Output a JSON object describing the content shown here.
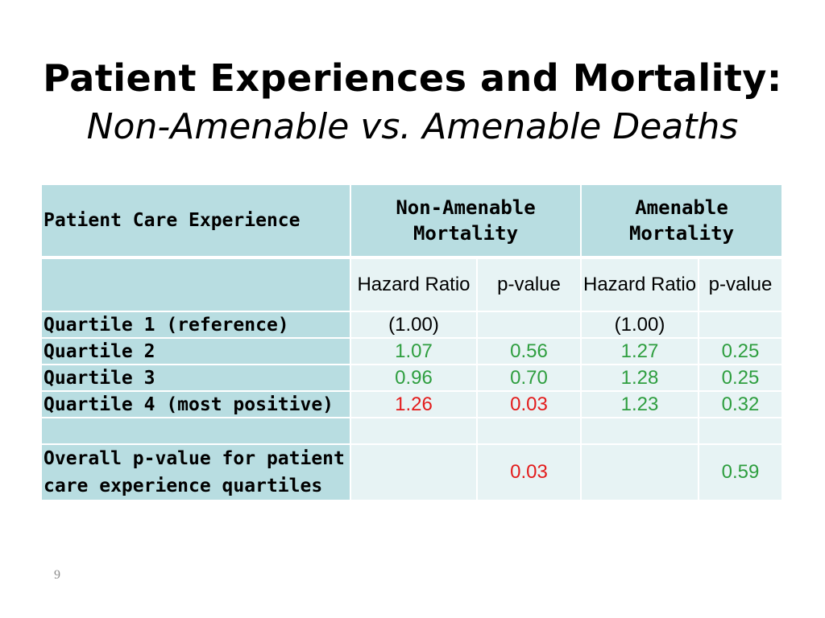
{
  "slide": {
    "title": "Patient Experiences and Mortality:",
    "subtitle": "Non-Amenable vs. Amenable Deaths",
    "page_number": "9"
  },
  "table": {
    "row_header_label": "Patient Care Experience",
    "group_non_amenable": "Non-Amenable Mortality",
    "group_amenable": "Amenable Mortality",
    "col_hazard_ratio": "Hazard Ratio",
    "col_p_value": "p-value",
    "rows": [
      {
        "label": "Quartile 1 (reference)",
        "na_hr": "(1.00)",
        "na_p": "",
        "am_hr": "(1.00)",
        "am_p": ""
      },
      {
        "label": "Quartile 2",
        "na_hr": "1.07",
        "na_p": "0.56",
        "am_hr": "1.27",
        "am_p": "0.25"
      },
      {
        "label": "Quartile 3",
        "na_hr": "0.96",
        "na_p": "0.70",
        "am_hr": "1.28",
        "am_p": "0.25"
      },
      {
        "label": "Quartile 4 (most positive)",
        "na_hr": "1.26",
        "na_p": "0.03",
        "am_hr": "1.23",
        "am_p": "0.32"
      }
    ],
    "overall": {
      "label": "Overall p-value for patient care experience quartiles",
      "na_p": "0.03",
      "am_p": "0.59"
    },
    "colors": {
      "header_bg": "#b8dde1",
      "cell_bg": "#e7f3f4",
      "nonsignificant": "#2e9e3f",
      "significant": "#e31b1b"
    }
  }
}
